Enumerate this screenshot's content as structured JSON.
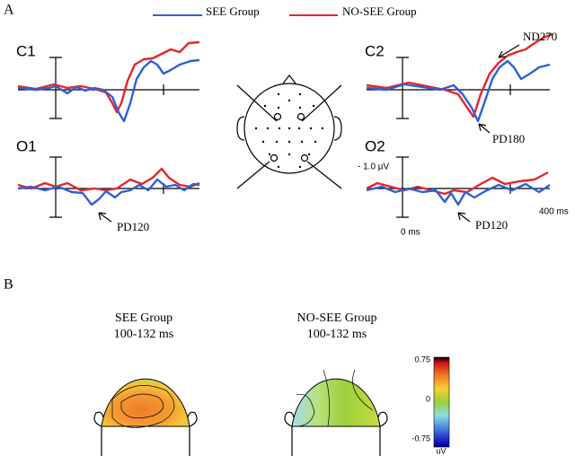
{
  "panel_a": {
    "label": "A",
    "legend": [
      {
        "name": "SEE Group",
        "color": "#2f5fd8"
      },
      {
        "name": "NO-SEE Group",
        "color": "#e3262a"
      }
    ],
    "plots": [
      {
        "label": "C1"
      },
      {
        "label": "C2",
        "annotations": [
          "ND270",
          "PD180"
        ]
      },
      {
        "label": "O1",
        "annotations": [
          "PD120"
        ]
      },
      {
        "label": "O2",
        "annotations": [
          "PD120"
        ]
      }
    ],
    "scale": {
      "amplitude": "- 1.0 µV",
      "start": "0 ms",
      "end": "400 ms"
    }
  },
  "panel_b": {
    "label": "B",
    "maps": [
      {
        "group": "SEE Group",
        "window": "100-132 ms"
      },
      {
        "group": "NO-SEE Group",
        "window": "100-132 ms"
      }
    ],
    "colorbar": {
      "ticks": [
        0.75,
        0,
        -0.75
      ],
      "unit": "uV"
    }
  }
}
